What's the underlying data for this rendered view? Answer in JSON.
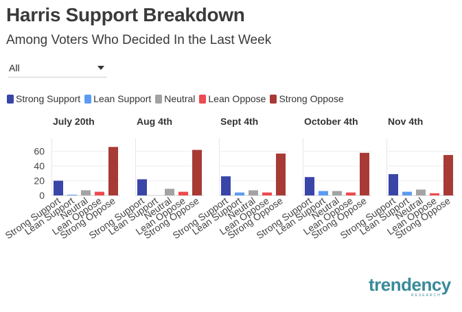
{
  "header": {
    "title": "Harris Support Breakdown",
    "subtitle": "Among Voters Who Decided In the Last Week"
  },
  "filter": {
    "selected": "All"
  },
  "logo": {
    "text": "trendency",
    "sub": "RESEARCH"
  },
  "colors": {
    "Strong Support": "#3a45a8",
    "Lean Support": "#5b9cf2",
    "Neutral": "#a3a3a3",
    "Lean Oppose": "#ee4a4f",
    "Strong Oppose": "#a83a36"
  },
  "chart_data": {
    "type": "bar",
    "legend": [
      "Strong Support",
      "Lean Support",
      "Neutral",
      "Lean Oppose",
      "Strong Oppose"
    ],
    "legend_position": "top-left",
    "categories": [
      "Strong Support",
      "Lean Support",
      "Neutral",
      "Lean Oppose",
      "Strong Oppose"
    ],
    "ylim": [
      0,
      70
    ],
    "yticks": [
      0,
      20,
      40,
      60
    ],
    "grid": true,
    "panels": [
      {
        "title": "July 20th",
        "values": [
          20,
          1,
          7,
          5,
          66
        ]
      },
      {
        "title": "Aug 4th",
        "values": [
          22,
          0,
          9,
          5,
          62
        ]
      },
      {
        "title": "Sept 4th",
        "values": [
          26,
          4,
          7,
          4,
          57
        ]
      },
      {
        "title": "October 4th",
        "values": [
          25,
          6,
          6,
          4,
          58
        ]
      },
      {
        "title": "Nov 4th",
        "values": [
          29,
          5,
          8,
          3,
          55
        ]
      }
    ]
  }
}
